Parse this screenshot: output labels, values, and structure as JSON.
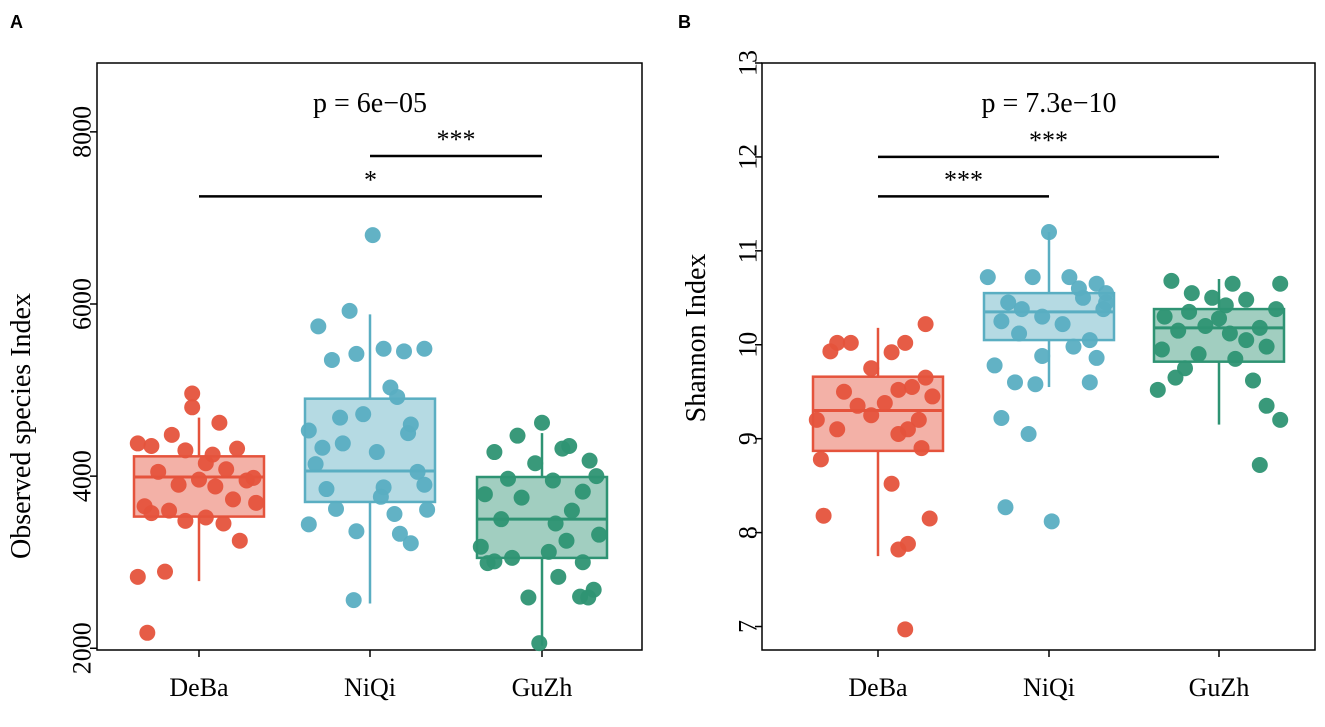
{
  "chart_data": [
    {
      "panel": "A",
      "type": "boxplot",
      "ylabel": "Observed species Index",
      "ylim": [
        1980,
        8800
      ],
      "yticks": [
        2000,
        4000,
        6000,
        8000
      ],
      "categories": [
        "DeBa",
        "NiQi",
        "GuZh"
      ],
      "colors": [
        "#e5533c",
        "#5aaec2",
        "#2e9373"
      ],
      "pvalue_text": "p = 6e−05",
      "boxes": [
        {
          "group": "DeBa",
          "whisker_low": 2780,
          "q1": 3530,
          "median": 3990,
          "q3": 4230,
          "whisker_high": 4680
        },
        {
          "group": "NiQi",
          "whisker_low": 2520,
          "q1": 3700,
          "median": 4060,
          "q3": 4900,
          "whisker_high": 5880
        },
        {
          "group": "GuZh",
          "whisker_low": 2030,
          "q1": 3050,
          "median": 3500,
          "q3": 3990,
          "whisker_high": 4500
        }
      ],
      "points": [
        [
          [
            -0.35,
            4350
          ],
          [
            -0.2,
            4480
          ],
          [
            -0.05,
            4800
          ],
          [
            0.15,
            4620
          ],
          [
            -0.45,
            2830
          ],
          [
            -0.25,
            2890
          ],
          [
            -0.38,
            2180
          ],
          [
            0.3,
            3250
          ],
          [
            -0.1,
            3480
          ],
          [
            0.05,
            3520
          ],
          [
            0.25,
            3730
          ],
          [
            -0.4,
            3650
          ],
          [
            -0.15,
            3900
          ],
          [
            0.2,
            4080
          ],
          [
            0.4,
            3980
          ],
          [
            -0.3,
            4050
          ],
          [
            0.1,
            4250
          ],
          [
            -0.45,
            4380
          ],
          [
            -0.05,
            4960
          ],
          [
            0.35,
            3950
          ],
          [
            0,
            3960
          ],
          [
            -0.22,
            3600
          ],
          [
            0.18,
            3450
          ],
          [
            -0.35,
            3570
          ],
          [
            0.05,
            4150
          ],
          [
            -0.1,
            4300
          ],
          [
            0.28,
            4320
          ],
          [
            0.12,
            3880
          ],
          [
            0.42,
            3690
          ]
        ],
        [
          [
            0.02,
            6800
          ],
          [
            -0.15,
            5920
          ],
          [
            -0.38,
            5740
          ],
          [
            0.1,
            5480
          ],
          [
            -0.1,
            5420
          ],
          [
            0.25,
            5450
          ],
          [
            0.4,
            5480
          ],
          [
            -0.28,
            5350
          ],
          [
            -0.45,
            4530
          ],
          [
            -0.05,
            4720
          ],
          [
            0.15,
            5030
          ],
          [
            0.2,
            4920
          ],
          [
            -0.35,
            4330
          ],
          [
            0.3,
            4600
          ],
          [
            -0.2,
            4380
          ],
          [
            0.05,
            4280
          ],
          [
            -0.4,
            4140
          ],
          [
            0.35,
            4050
          ],
          [
            0.1,
            3870
          ],
          [
            -0.25,
            3620
          ],
          [
            0.4,
            3900
          ],
          [
            -0.1,
            3360
          ],
          [
            0.22,
            3330
          ],
          [
            -0.45,
            3440
          ],
          [
            0.3,
            3220
          ],
          [
            -0.12,
            2560
          ],
          [
            0.18,
            3560
          ],
          [
            -0.32,
            3850
          ],
          [
            0.08,
            3760
          ],
          [
            0.42,
            3610
          ],
          [
            -0.22,
            4680
          ],
          [
            0.28,
            4500
          ]
        ],
        [
          [
            0,
            4620
          ],
          [
            -0.18,
            4470
          ],
          [
            0.2,
            4350
          ],
          [
            0.35,
            4180
          ],
          [
            -0.35,
            4280
          ],
          [
            0.15,
            4320
          ],
          [
            -0.05,
            4150
          ],
          [
            0.4,
            4000
          ],
          [
            -0.25,
            3970
          ],
          [
            0.08,
            3950
          ],
          [
            0.3,
            3820
          ],
          [
            -0.42,
            3790
          ],
          [
            -0.15,
            3750
          ],
          [
            0.22,
            3600
          ],
          [
            -0.3,
            3500
          ],
          [
            0.1,
            3450
          ],
          [
            0.42,
            3320
          ],
          [
            -0.45,
            3180
          ],
          [
            0.05,
            3120
          ],
          [
            -0.22,
            3050
          ],
          [
            0.3,
            3000
          ],
          [
            -0.4,
            2990
          ],
          [
            0.12,
            2830
          ],
          [
            0.38,
            2680
          ],
          [
            0.28,
            2600
          ],
          [
            -0.1,
            2590
          ],
          [
            0.34,
            2590
          ],
          [
            -0.02,
            2060
          ],
          [
            -0.35,
            3010
          ],
          [
            0.18,
            3250
          ]
        ]
      ],
      "comparisons": [
        {
          "from": "NiQi",
          "to": "GuZh",
          "y": 7720,
          "label": "***"
        },
        {
          "from": "DeBa",
          "to": "GuZh",
          "y": 7250,
          "label": "*"
        }
      ],
      "xlabel": ""
    },
    {
      "panel": "B",
      "type": "boxplot",
      "ylabel": "Shannon Index",
      "ylim": [
        6.75,
        13.0
      ],
      "yticks": [
        7,
        8,
        9,
        10,
        11,
        12,
        13
      ],
      "categories": [
        "DeBa",
        "NiQi",
        "GuZh"
      ],
      "colors": [
        "#e5533c",
        "#5aaec2",
        "#2e9373"
      ],
      "pvalue_text": "p = 7.3e−10",
      "boxes": [
        {
          "group": "DeBa",
          "whisker_low": 7.75,
          "q1": 8.87,
          "median": 9.3,
          "q3": 9.66,
          "whisker_high": 10.18
        },
        {
          "group": "NiQi",
          "whisker_low": 9.55,
          "q1": 10.05,
          "median": 10.35,
          "q3": 10.55,
          "whisker_high": 11.2
        },
        {
          "group": "GuZh",
          "whisker_low": 9.15,
          "q1": 9.82,
          "median": 10.18,
          "q3": 10.38,
          "whisker_high": 10.7
        }
      ],
      "points": [
        [
          [
            0.35,
            10.22
          ],
          [
            -0.3,
            10.02
          ],
          [
            -0.2,
            10.02
          ],
          [
            0.2,
            10.02
          ],
          [
            -0.35,
            9.93
          ],
          [
            0.1,
            9.92
          ],
          [
            0.25,
            9.55
          ],
          [
            -0.05,
            9.75
          ],
          [
            0.35,
            9.65
          ],
          [
            -0.25,
            9.5
          ],
          [
            0.15,
            9.52
          ],
          [
            0.4,
            9.45
          ],
          [
            -0.45,
            9.2
          ],
          [
            -0.15,
            9.35
          ],
          [
            0.05,
            9.38
          ],
          [
            0.3,
            9.2
          ],
          [
            -0.3,
            9.1
          ],
          [
            0.15,
            9.05
          ],
          [
            0.32,
            8.9
          ],
          [
            -0.42,
            8.78
          ],
          [
            0.1,
            8.52
          ],
          [
            -0.05,
            9.25
          ],
          [
            0.22,
            9.1
          ],
          [
            -0.4,
            8.18
          ],
          [
            0.38,
            8.15
          ],
          [
            0.22,
            7.88
          ],
          [
            0.15,
            7.82
          ],
          [
            0.2,
            6.97
          ]
        ],
        [
          [
            0,
            11.2
          ],
          [
            -0.45,
            10.72
          ],
          [
            -0.12,
            10.72
          ],
          [
            0.15,
            10.72
          ],
          [
            0.35,
            10.65
          ],
          [
            0.42,
            10.55
          ],
          [
            -0.3,
            10.45
          ],
          [
            0.25,
            10.5
          ],
          [
            -0.05,
            10.3
          ],
          [
            0.1,
            10.22
          ],
          [
            0.4,
            10.38
          ],
          [
            -0.35,
            10.25
          ],
          [
            0.3,
            10.05
          ],
          [
            -0.22,
            10.12
          ],
          [
            0.18,
            9.98
          ],
          [
            -0.05,
            9.88
          ],
          [
            0.35,
            9.86
          ],
          [
            -0.4,
            9.78
          ],
          [
            -0.25,
            9.6
          ],
          [
            -0.1,
            9.58
          ],
          [
            0.3,
            9.6
          ],
          [
            -0.35,
            9.22
          ],
          [
            -0.15,
            9.05
          ],
          [
            -0.32,
            8.27
          ],
          [
            0.02,
            8.12
          ],
          [
            0.42,
            10.45
          ],
          [
            0.22,
            10.6
          ],
          [
            -0.2,
            10.38
          ]
        ],
        [
          [
            -0.35,
            10.68
          ],
          [
            0.45,
            10.65
          ],
          [
            0.1,
            10.65
          ],
          [
            -0.2,
            10.55
          ],
          [
            0.2,
            10.48
          ],
          [
            0.42,
            10.38
          ],
          [
            -0.4,
            10.3
          ],
          [
            0.05,
            10.42
          ],
          [
            -0.1,
            10.2
          ],
          [
            0.3,
            10.18
          ],
          [
            -0.3,
            10.15
          ],
          [
            0.2,
            10.05
          ],
          [
            -0.42,
            9.95
          ],
          [
            0.35,
            9.98
          ],
          [
            -0.15,
            9.9
          ],
          [
            0.12,
            9.85
          ],
          [
            -0.25,
            9.75
          ],
          [
            0.25,
            9.62
          ],
          [
            -0.32,
            9.65
          ],
          [
            -0.45,
            9.52
          ],
          [
            0.35,
            9.35
          ],
          [
            0.45,
            9.2
          ],
          [
            0.3,
            8.72
          ],
          [
            0,
            10.28
          ],
          [
            -0.05,
            10.5
          ],
          [
            0.08,
            10.12
          ],
          [
            -0.22,
            10.35
          ]
        ]
      ],
      "comparisons": [
        {
          "from": "DeBa",
          "to": "GuZh",
          "y": 12.0,
          "label": "***"
        },
        {
          "from": "DeBa",
          "to": "NiQi",
          "y": 11.58,
          "label": "***"
        }
      ],
      "xlabel": ""
    }
  ]
}
